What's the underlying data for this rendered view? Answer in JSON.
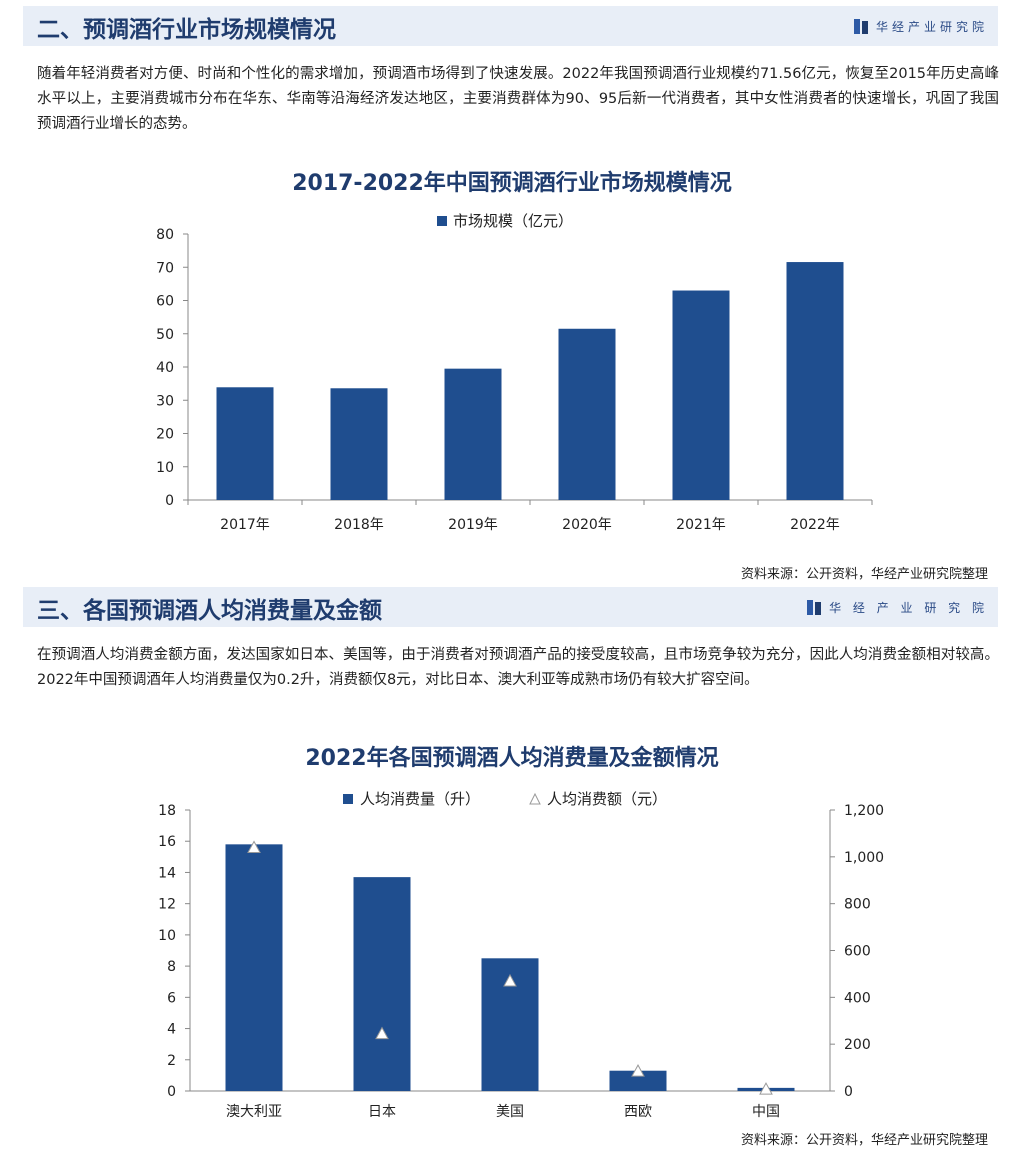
{
  "section2": {
    "title": "二、预调酒行业市场规模情况",
    "brand": "华经产业研究院",
    "paragraph": "随着年轻消费者对方便、时尚和个性化的需求增加，预调酒市场得到了快速发展。2022年我国预调酒行业规模约71.56亿元，恢复至2015年历史高峰水平以上，主要消费城市分布在华东、华南等沿海经济发达地区，主要消费群体为90、95后新一代消费者，其中女性消费者的快速增长，巩固了我国预调酒行业增长的态势。",
    "source": "资料来源：公开资料，华经产业研究院整理"
  },
  "section3": {
    "title": "三、各国预调酒人均消费量及金额",
    "brand": "华 经 产 业 研 究 院",
    "paragraph": "在预调酒人均消费金额方面，发达国家如日本、美国等，由于消费者对预调酒产品的接受度较高，且市场竞争较为充分，因此人均消费金额相对较高。2022年中国预调酒年人均消费量仅为0.2升，消费额仅8元，对比日本、澳大利亚等成熟市场仍有较大扩容空间。",
    "source": "资料来源：公开资料，华经产业研究院整理"
  },
  "chart_data": [
    {
      "type": "bar",
      "title": "2017-2022年中国预调酒行业市场规模情况",
      "categories": [
        "2017年",
        "2018年",
        "2019年",
        "2020年",
        "2021年",
        "2022年"
      ],
      "series": [
        {
          "name": "市场规模（亿元）",
          "values": [
            33.9,
            33.6,
            39.5,
            51.5,
            63.0,
            71.56
          ]
        }
      ],
      "ylim": [
        0,
        80
      ],
      "yticks": [
        "0",
        "10",
        "20",
        "30",
        "40",
        "50",
        "60",
        "70",
        "80"
      ],
      "legend": "top",
      "grid": false,
      "color": "#1f4e8f"
    },
    {
      "type": "bar",
      "title": "2022年各国预调酒人均消费量及金额情况",
      "categories": [
        "澳大利亚",
        "日本",
        "美国",
        "西欧",
        "中国"
      ],
      "series": [
        {
          "name": "人均消费量（升）",
          "type": "bar",
          "axis": "left",
          "values": [
            15.8,
            13.7,
            8.5,
            1.3,
            0.2
          ]
        },
        {
          "name": "人均消费额（元）",
          "type": "scatter",
          "axis": "right",
          "values": [
            1040,
            245,
            470,
            85,
            8
          ]
        }
      ],
      "ylim": [
        0,
        18
      ],
      "yticks": [
        "0",
        "2",
        "4",
        "6",
        "8",
        "10",
        "12",
        "14",
        "16",
        "18"
      ],
      "y2lim": [
        0,
        1200
      ],
      "y2ticks": [
        "0",
        "200",
        "400",
        "600",
        "800",
        "1,000",
        "1,200"
      ],
      "legend": "top",
      "grid": false,
      "color": "#1f4e8f"
    }
  ]
}
